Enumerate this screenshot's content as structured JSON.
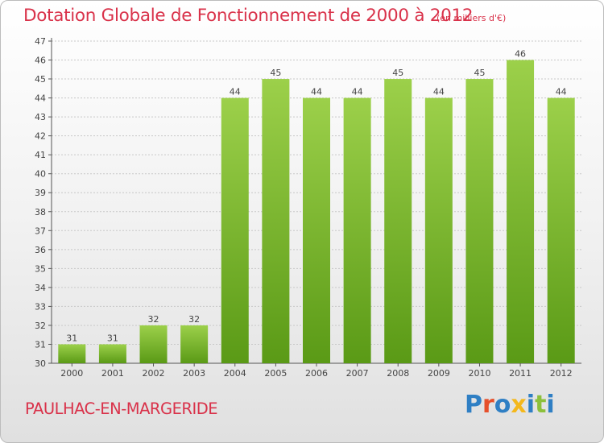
{
  "header": {
    "title": "Dotation Globale de Fonctionnement de 2000 à 2012",
    "unit": "(en milliers d'€)"
  },
  "footer": {
    "commune": "PAULHAC-EN-MARGERIDE",
    "logo": "Proxiti"
  },
  "colors": {
    "title": "#d9324a",
    "bar_light": "#9cd04a",
    "bar_dark": "#5a9a16",
    "logo_letters": [
      "#2f7fc4",
      "#e6502b",
      "#2f7fc4",
      "#f4b81c",
      "#2f7fc4",
      "#8cc03c",
      "#2f7fc4"
    ]
  },
  "chart_data": {
    "type": "bar",
    "title": "Dotation Globale de Fonctionnement de 2000 à 2012",
    "subtitle": "(en milliers d'€)",
    "xlabel": "",
    "ylabel": "",
    "categories": [
      "2000",
      "2001",
      "2002",
      "2003",
      "2004",
      "2005",
      "2006",
      "2007",
      "2008",
      "2009",
      "2010",
      "2011",
      "2012"
    ],
    "values": [
      31,
      31,
      32,
      32,
      44,
      45,
      44,
      44,
      45,
      44,
      45,
      46,
      44
    ],
    "ylim": [
      30,
      47
    ],
    "yticks": [
      30,
      31,
      32,
      33,
      34,
      35,
      36,
      37,
      38,
      39,
      40,
      41,
      42,
      43,
      44,
      45,
      46,
      47
    ],
    "grid": true,
    "legend": "none",
    "data_labels": true
  }
}
